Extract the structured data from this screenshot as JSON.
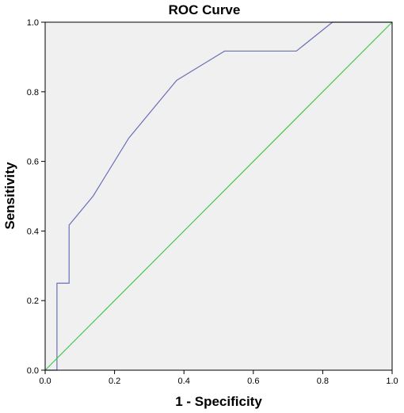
{
  "chart_data": {
    "type": "line",
    "title": "ROC Curve",
    "xlabel": "1 - Specificity",
    "ylabel": "Sensitivity",
    "xlim": [
      0.0,
      1.0
    ],
    "ylim": [
      0.0,
      1.0
    ],
    "xticks": [
      "0.0",
      "0.2",
      "0.4",
      "0.6",
      "0.8",
      "1.0"
    ],
    "yticks": [
      "0.0",
      "0.2",
      "0.4",
      "0.6",
      "0.8",
      "1.0"
    ],
    "grid": false,
    "series": [
      {
        "color": "#6a70b8",
        "points": [
          [
            0.0,
            0.0
          ],
          [
            0.034,
            0.0
          ],
          [
            0.034,
            0.25
          ],
          [
            0.069,
            0.25
          ],
          [
            0.069,
            0.417
          ],
          [
            0.138,
            0.5
          ],
          [
            0.241,
            0.667
          ],
          [
            0.379,
            0.833
          ],
          [
            0.517,
            0.917
          ],
          [
            0.724,
            0.917
          ],
          [
            0.828,
            1.0
          ],
          [
            1.0,
            1.0
          ]
        ]
      },
      {
        "color": "#3fc84a",
        "points": [
          [
            0.0,
            0.0
          ],
          [
            1.0,
            1.0
          ]
        ]
      }
    ],
    "plot_background": "#f0f0f0"
  }
}
